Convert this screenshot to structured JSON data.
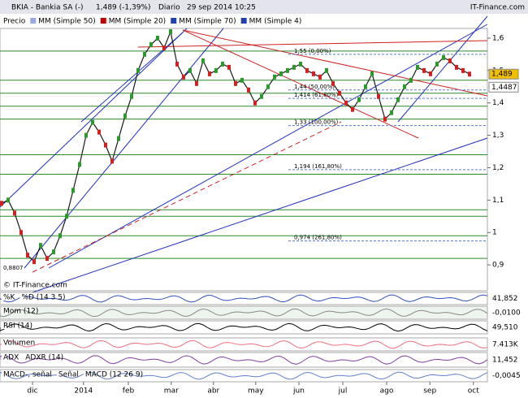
{
  "chart_data": {
    "type": "line",
    "title": "BKIA - Bankia SA (-)",
    "subtitle": "1,489 (-1,39%)",
    "period": "Diario",
    "date": "29 sep 2014 10:25",
    "source": "IT-Finance.com",
    "watermark": "© IT-Finance.com",
    "legend": [
      "Precio",
      "MM (Simple 50)",
      "MM (Simple 20)",
      "MM (Simple 70)",
      "MM (Simple 4)"
    ],
    "series": [
      {
        "name": "Precio",
        "color": "#1a1a1a",
        "values": [
          1.09,
          1.1,
          1.06,
          1.0,
          0.93,
          0.91,
          0.96,
          0.92,
          0.94,
          0.99,
          1.05,
          1.13,
          1.21,
          1.3,
          1.34,
          1.31,
          1.27,
          1.22,
          1.29,
          1.36,
          1.42,
          1.5,
          1.55,
          1.58,
          1.6,
          1.57,
          1.62,
          1.52,
          1.48,
          1.5,
          1.46,
          1.53,
          1.49,
          1.5,
          1.52,
          1.51,
          1.46,
          1.47,
          1.44,
          1.4,
          1.42,
          1.45,
          1.48,
          1.49,
          1.5,
          1.51,
          1.52,
          1.5,
          1.49,
          1.48,
          1.5,
          1.46,
          1.43,
          1.4,
          1.38,
          1.41,
          1.45,
          1.49,
          1.42,
          1.35,
          1.37,
          1.41,
          1.45,
          1.47,
          1.51,
          1.5,
          1.49,
          1.52,
          1.54,
          1.53,
          1.51,
          1.5,
          1.489
        ]
      }
    ],
    "xlim": [
      -0.25,
      74.75
    ],
    "xticks": [
      {
        "value": 4.75,
        "label": "dic"
      },
      {
        "value": 12.6,
        "label": "2014"
      },
      {
        "value": 19.5,
        "label": "feb"
      },
      {
        "value": 26.1,
        "label": "mar"
      },
      {
        "value": 32.6,
        "label": "abr"
      },
      {
        "value": 39.1,
        "label": "may"
      },
      {
        "value": 45.75,
        "label": "jun"
      },
      {
        "value": 52.5,
        "label": "jul"
      },
      {
        "value": 59.25,
        "label": "ago"
      },
      {
        "value": 65.9,
        "label": "sep"
      },
      {
        "value": 72.6,
        "label": "oct"
      }
    ],
    "ylim": [
      0.82,
      1.63
    ],
    "yticks": [
      {
        "value": 0.9,
        "label": "0,9"
      },
      1,
      {
        "value": 1.1,
        "label": "1,1"
      },
      {
        "value": 1.2,
        "label": "1,2"
      },
      {
        "value": 1.3,
        "label": "1,3"
      },
      {
        "value": 1.4,
        "label": "1,4"
      },
      {
        "value": 1.5,
        "label": "1,5"
      },
      {
        "value": 1.6,
        "label": "1,6"
      }
    ],
    "levels": [
      {
        "value": 1.55,
        "label": "1,55 (0,00%)"
      },
      {
        "value": 1.414,
        "label": "1,414 (61,80%)"
      },
      {
        "value": 1.44,
        "label": "1,44 (50,00%)"
      },
      {
        "value": 1.33,
        "label": "1,33 (100,00%)"
      },
      {
        "value": 1.194,
        "label": "1,194 (161,80%)"
      },
      {
        "value": 0.974,
        "label": "0,974 (261,80%)"
      }
    ],
    "low_label": {
      "value": 0.8807,
      "label": "0,8807"
    },
    "last_label": {
      "value": 1.489,
      "label": "1,489"
    },
    "ma_label": {
      "value": 1.4487,
      "label": "1,4487"
    },
    "indicators": [
      {
        "name": "%K",
        "params": "%D (14 3 5)",
        "value_label": "41,852"
      },
      {
        "name": "Mom (12)",
        "value_label": "-0,0100"
      },
      {
        "name": "RSI (14)",
        "value_label": "49,510"
      },
      {
        "name": "Volumen",
        "value_label": "7.413K"
      },
      {
        "name": "ADX",
        "params": "ADXR (14)",
        "value_label": "11,452"
      },
      {
        "name": "MACD-, señal",
        "params": "Señal",
        "extra": "MACD (12 26 9)",
        "value_label": "-0,0045"
      }
    ]
  }
}
